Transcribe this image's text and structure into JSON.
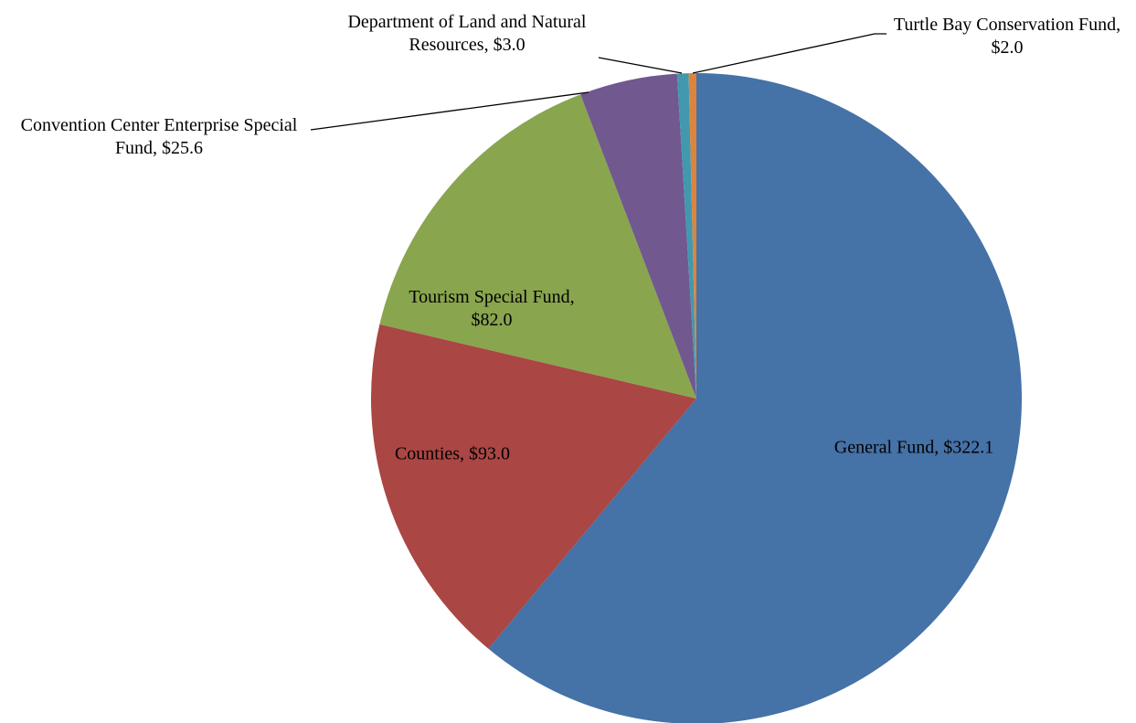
{
  "chart_data": {
    "type": "pie",
    "values": [
      322.1,
      93.0,
      82.0,
      25.6,
      3.0,
      2.0
    ],
    "value_labels": [
      "General Fund, $322.1",
      "Counties, $93.0",
      "Tourism Special Fund, $82.0",
      "Convention Center Enterprise Special Fund, $25.6",
      "Department of Land and Natural Resources, $3.0",
      "Turtle Bay Conservation Fund, $2.0"
    ],
    "colors": [
      "#4572a7",
      "#aa4643",
      "#89a54e",
      "#71588f",
      "#4198af",
      "#db843d"
    ],
    "start_angle": 0,
    "direction": "clockwise"
  }
}
